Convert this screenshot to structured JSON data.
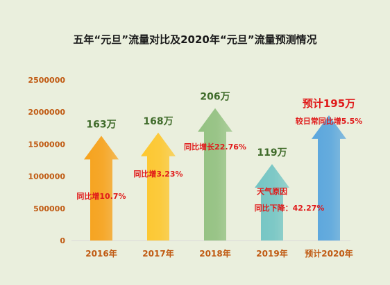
{
  "chart_data": {
    "type": "bar",
    "title": "五年“元旦”流量对比及2020年“元旦”流量预测情况",
    "categories": [
      "2016年",
      "2017年",
      "2018年",
      "2019年",
      "预计2020年"
    ],
    "values": [
      1630000,
      1680000,
      2060000,
      1190000,
      1950000
    ],
    "value_labels": [
      "163万",
      "168万",
      "206万",
      "119万",
      "预计195万"
    ],
    "annotations": [
      [
        "同比增10.7%"
      ],
      [
        "同比增3.23%"
      ],
      [
        "同比增长22.76%"
      ],
      [
        "天气原因",
        "同比下降：42.27%"
      ],
      [
        "较日常同比增5.5%"
      ]
    ],
    "ylim": [
      0,
      2500000
    ],
    "yticks": [
      0,
      500000,
      1000000,
      1500000,
      2000000,
      2500000
    ],
    "ytick_labels": [
      "0",
      "500000",
      "1000000",
      "1500000",
      "2000000",
      "2500000"
    ],
    "grid": false,
    "colors": {
      "bars": [
        "#f7a21c",
        "#fdc72f",
        "#93c181",
        "#74c5c4",
        "#5aa6dd"
      ],
      "value_label": [
        "#3f6b2a",
        "#3f6b2a",
        "#3f6b2a",
        "#3f6b2a",
        "#e01a1a"
      ],
      "annotation": "#e01a1a",
      "axis_tick": "#c05a12",
      "title": "#1a1a1a",
      "baseline": "#d9d9d9"
    }
  }
}
